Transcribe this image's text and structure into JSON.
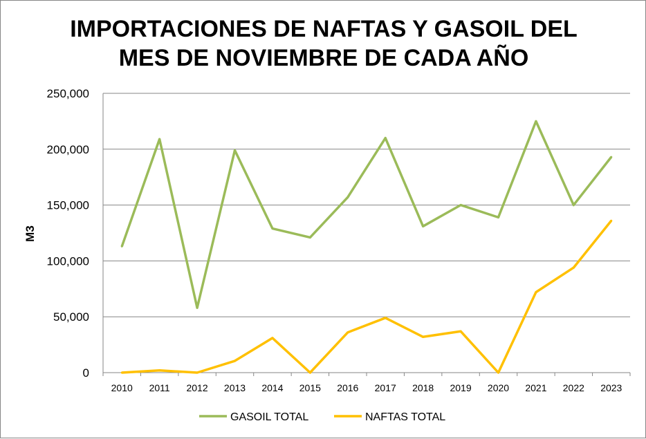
{
  "chart_data": {
    "type": "line",
    "title_line1": "IMPORTACIONES DE NAFTAS Y GASOIL DEL",
    "title_line2": "MES DE NOVIEMBRE DE CADA AÑO",
    "ylabel": "M3",
    "xlabel": "",
    "ylim": [
      0,
      250000
    ],
    "yticks": [
      0,
      50000,
      100000,
      150000,
      200000,
      250000
    ],
    "ytick_labels": [
      "0",
      "50,000",
      "100,000",
      "150,000",
      "200,000",
      "250,000"
    ],
    "categories": [
      "2010",
      "2011",
      "2012",
      "2013",
      "2014",
      "2015",
      "2016",
      "2017",
      "2018",
      "2019",
      "2020",
      "2021",
      "2022",
      "2023"
    ],
    "grid": true,
    "legend_position": "bottom",
    "series": [
      {
        "name": "GASOIL TOTAL",
        "color": "#9BBB59",
        "values": [
          113000,
          209000,
          58000,
          199000,
          129000,
          121000,
          157000,
          210000,
          131000,
          150000,
          139000,
          225000,
          150000,
          193000
        ]
      },
      {
        "name": "NAFTAS TOTAL",
        "color": "#FFC000",
        "values": [
          0,
          2000,
          0,
          10500,
          31000,
          0,
          36000,
          49000,
          32000,
          37000,
          0,
          72000,
          94000,
          136000
        ]
      }
    ]
  }
}
